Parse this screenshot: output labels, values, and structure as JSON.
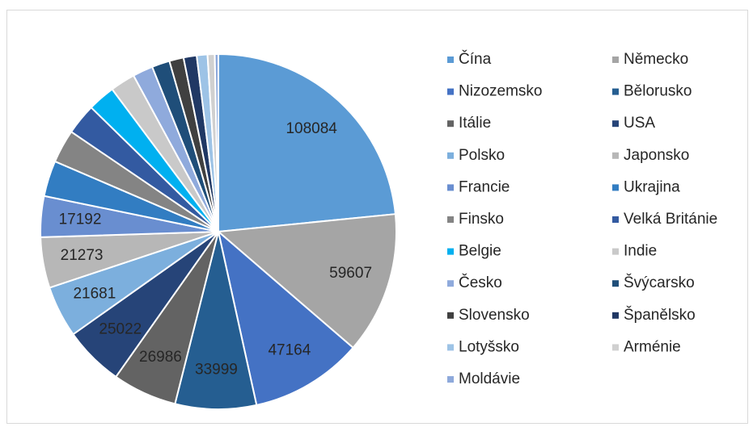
{
  "chart_data": {
    "type": "pie",
    "categories": [
      "Čína",
      "Německo",
      "Nizozemsko",
      "Bělorusko",
      "Itálie",
      "USA",
      "Polsko",
      "Japonsko",
      "Francie",
      "Ukrajina",
      "Finsko",
      "Velká Británie",
      "Belgie",
      "Indie",
      "Česko",
      "Švýcarsko",
      "Slovensko",
      "Španělsko",
      "Lotyšsko",
      "Arménie",
      "Moldávie"
    ],
    "values": [
      108084,
      59607,
      47164,
      33999,
      26986,
      25022,
      21681,
      21273,
      17192,
      15000,
      14000,
      13000,
      11500,
      10500,
      8500,
      7500,
      6000,
      5500,
      4500,
      3000,
      1500
    ],
    "value_labels": [
      "108084",
      "59607",
      "47164",
      "33999",
      "26986",
      "25022",
      "21681",
      "21273",
      "17192",
      null,
      null,
      null,
      null,
      null,
      null,
      null,
      null,
      null,
      null,
      null,
      null
    ],
    "colors": [
      "#5b9bd5",
      "#a5a5a5",
      "#4472c4",
      "#255e91",
      "#636363",
      "#264478",
      "#7cafdd",
      "#b7b7b7",
      "#698ed0",
      "#327dc2",
      "#848484",
      "#335aa1",
      "#00b0f0",
      "#c9c9c9",
      "#8faadc",
      "#1f4e79",
      "#404040",
      "#203864",
      "#9dc3e6",
      "#d0d0d0",
      "#8ea9db"
    ],
    "legend": "right"
  }
}
